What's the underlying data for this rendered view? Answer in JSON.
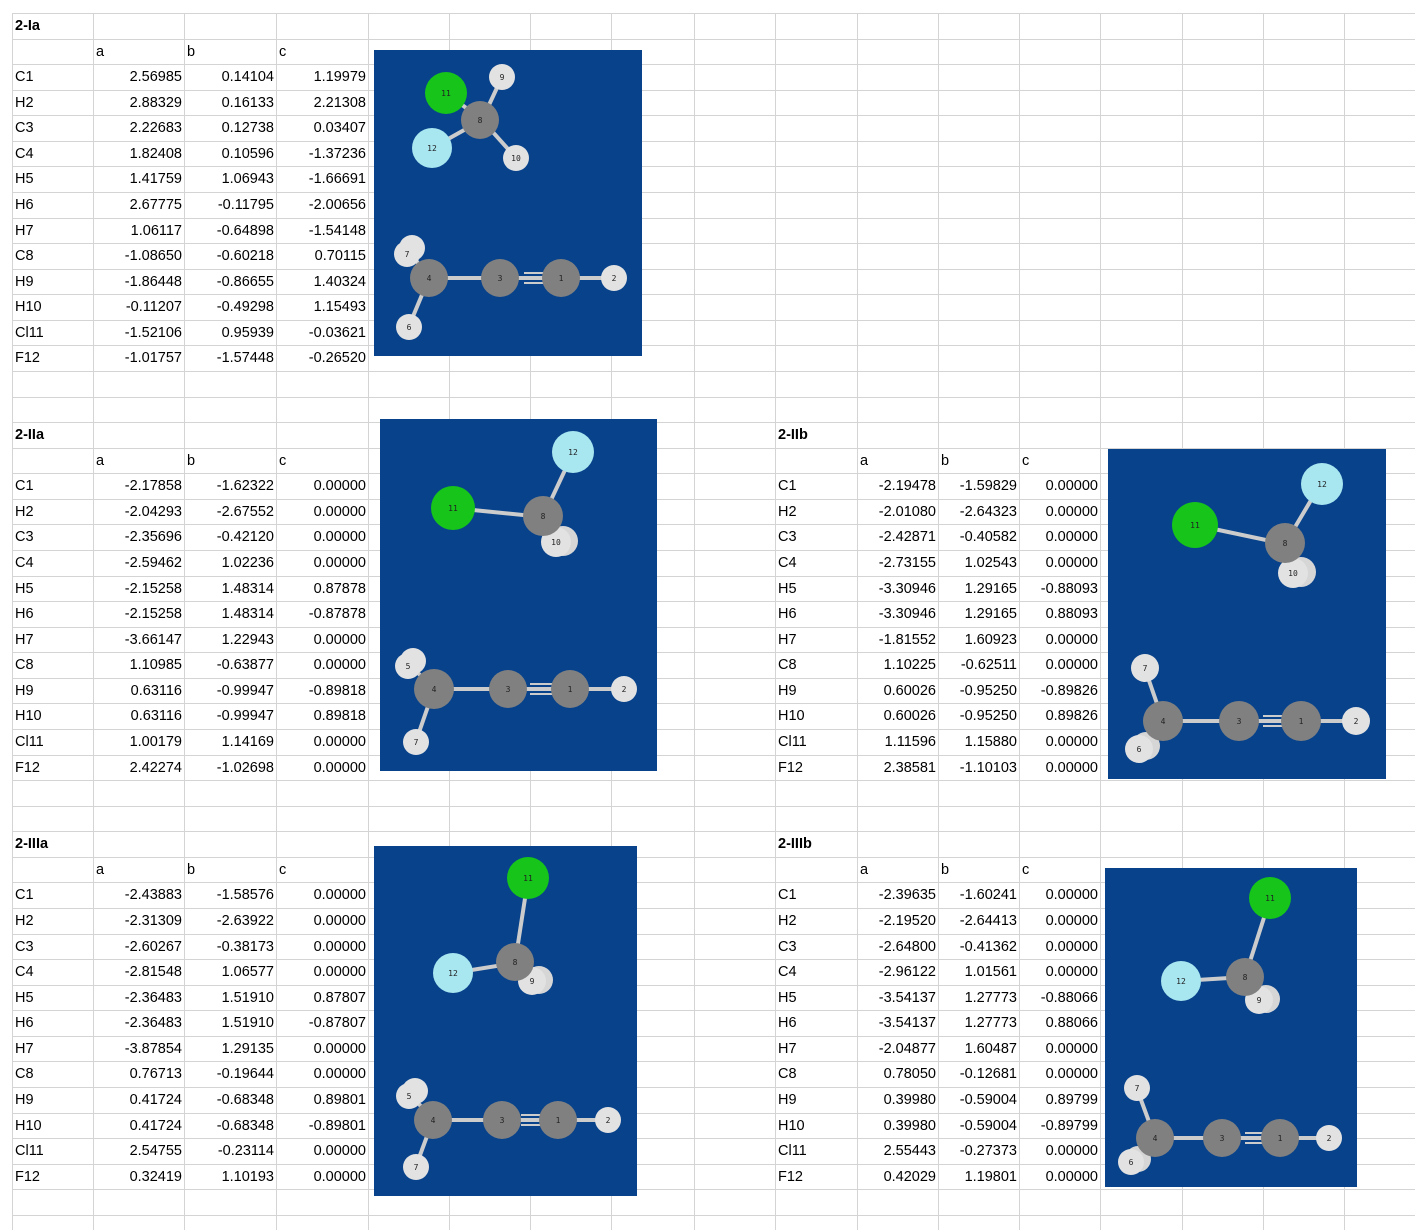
{
  "sheet": {
    "blocks": [
      {
        "title": "2-Ia",
        "headers": [
          "a",
          "b",
          "c"
        ],
        "rows": [
          [
            "C1",
            "2.56985",
            "0.14104",
            "1.19979"
          ],
          [
            "H2",
            "2.88329",
            "0.16133",
            "2.21308"
          ],
          [
            "C3",
            "2.22683",
            "0.12738",
            "0.03407"
          ],
          [
            "C4",
            "1.82408",
            "0.10596",
            "-1.37236"
          ],
          [
            "H5",
            "1.41759",
            "1.06943",
            "-1.66691"
          ],
          [
            "H6",
            "2.67775",
            "-0.11795",
            "-2.00656"
          ],
          [
            "H7",
            "1.06117",
            "-0.64898",
            "-1.54148"
          ],
          [
            "C8",
            "-1.08650",
            "-0.60218",
            "0.70115"
          ],
          [
            "H9",
            "-1.86448",
            "-0.86655",
            "1.40324"
          ],
          [
            "H10",
            "-0.11207",
            "-0.49298",
            "1.15493"
          ],
          [
            "Cl11",
            "-1.52106",
            "0.95939",
            "-0.03621"
          ],
          [
            "F12",
            "-1.01757",
            "-1.57448",
            "-0.26520"
          ]
        ]
      },
      {
        "title": "2-IIa",
        "headers": [
          "a",
          "b",
          "c"
        ],
        "rows": [
          [
            "C1",
            "-2.17858",
            "-1.62322",
            "0.00000"
          ],
          [
            "H2",
            "-2.04293",
            "-2.67552",
            "0.00000"
          ],
          [
            "C3",
            "-2.35696",
            "-0.42120",
            "0.00000"
          ],
          [
            "C4",
            "-2.59462",
            "1.02236",
            "0.00000"
          ],
          [
            "H5",
            "-2.15258",
            "1.48314",
            "0.87878"
          ],
          [
            "H6",
            "-2.15258",
            "1.48314",
            "-0.87878"
          ],
          [
            "H7",
            "-3.66147",
            "1.22943",
            "0.00000"
          ],
          [
            "C8",
            "1.10985",
            "-0.63877",
            "0.00000"
          ],
          [
            "H9",
            "0.63116",
            "-0.99947",
            "-0.89818"
          ],
          [
            "H10",
            "0.63116",
            "-0.99947",
            "0.89818"
          ],
          [
            "Cl11",
            "1.00179",
            "1.14169",
            "0.00000"
          ],
          [
            "F12",
            "2.42274",
            "-1.02698",
            "0.00000"
          ]
        ]
      },
      {
        "title": "2-IIb",
        "headers": [
          "a",
          "b",
          "c"
        ],
        "rows": [
          [
            "C1",
            "-2.19478",
            "-1.59829",
            "0.00000"
          ],
          [
            "H2",
            "-2.01080",
            "-2.64323",
            "0.00000"
          ],
          [
            "C3",
            "-2.42871",
            "-0.40582",
            "0.00000"
          ],
          [
            "C4",
            "-2.73155",
            "1.02543",
            "0.00000"
          ],
          [
            "H5",
            "-3.30946",
            "1.29165",
            "-0.88093"
          ],
          [
            "H6",
            "-3.30946",
            "1.29165",
            "0.88093"
          ],
          [
            "H7",
            "-1.81552",
            "1.60923",
            "0.00000"
          ],
          [
            "C8",
            "1.10225",
            "-0.62511",
            "0.00000"
          ],
          [
            "H9",
            "0.60026",
            "-0.95250",
            "-0.89826"
          ],
          [
            "H10",
            "0.60026",
            "-0.95250",
            "0.89826"
          ],
          [
            "Cl11",
            "1.11596",
            "1.15880",
            "0.00000"
          ],
          [
            "F12",
            "2.38581",
            "-1.10103",
            "0.00000"
          ]
        ]
      },
      {
        "title": "2-IIIa",
        "headers": [
          "a",
          "b",
          "c"
        ],
        "rows": [
          [
            "C1",
            "-2.43883",
            "-1.58576",
            "0.00000"
          ],
          [
            "H2",
            "-2.31309",
            "-2.63922",
            "0.00000"
          ],
          [
            "C3",
            "-2.60267",
            "-0.38173",
            "0.00000"
          ],
          [
            "C4",
            "-2.81548",
            "1.06577",
            "0.00000"
          ],
          [
            "H5",
            "-2.36483",
            "1.51910",
            "0.87807"
          ],
          [
            "H6",
            "-2.36483",
            "1.51910",
            "-0.87807"
          ],
          [
            "H7",
            "-3.87854",
            "1.29135",
            "0.00000"
          ],
          [
            "C8",
            "0.76713",
            "-0.19644",
            "0.00000"
          ],
          [
            "H9",
            "0.41724",
            "-0.68348",
            "0.89801"
          ],
          [
            "H10",
            "0.41724",
            "-0.68348",
            "-0.89801"
          ],
          [
            "Cl11",
            "2.54755",
            "-0.23114",
            "0.00000"
          ],
          [
            "F12",
            "0.32419",
            "1.10193",
            "0.00000"
          ]
        ]
      },
      {
        "title": "2-IIIb",
        "headers": [
          "a",
          "b",
          "c"
        ],
        "rows": [
          [
            "C1",
            "-2.39635",
            "-1.60241",
            "0.00000"
          ],
          [
            "H2",
            "-2.19520",
            "-2.64413",
            "0.00000"
          ],
          [
            "C3",
            "-2.64800",
            "-0.41362",
            "0.00000"
          ],
          [
            "C4",
            "-2.96122",
            "1.01561",
            "0.00000"
          ],
          [
            "H5",
            "-3.54137",
            "1.27773",
            "-0.88066"
          ],
          [
            "H6",
            "-3.54137",
            "1.27773",
            "0.88066"
          ],
          [
            "H7",
            "-2.04877",
            "1.60487",
            "0.00000"
          ],
          [
            "C8",
            "0.78050",
            "-0.12681",
            "0.00000"
          ],
          [
            "H9",
            "0.39980",
            "-0.59004",
            "0.89799"
          ],
          [
            "H10",
            "0.39980",
            "-0.59004",
            "-0.89799"
          ],
          [
            "Cl11",
            "2.55443",
            "-0.27373",
            "0.00000"
          ],
          [
            "F12",
            "0.42029",
            "1.19801",
            "0.00000"
          ]
        ]
      }
    ],
    "molecule_images": [
      {
        "structure": "2-Ia",
        "atom_labels": [
          "1",
          "2",
          "3",
          "4",
          "6",
          "7",
          "8",
          "9",
          "10",
          "11",
          "12"
        ]
      },
      {
        "structure": "2-IIa",
        "atom_labels": [
          "1",
          "2",
          "3",
          "4",
          "5",
          "7",
          "8",
          "10",
          "11",
          "12"
        ]
      },
      {
        "structure": "2-IIb",
        "atom_labels": [
          "1",
          "2",
          "3",
          "4",
          "6",
          "7",
          "8",
          "10",
          "11",
          "12"
        ]
      },
      {
        "structure": "2-IIIa",
        "atom_labels": [
          "1",
          "2",
          "3",
          "4",
          "5",
          "7",
          "8",
          "9",
          "11",
          "12"
        ]
      },
      {
        "structure": "2-IIIb",
        "atom_labels": [
          "1",
          "2",
          "3",
          "4",
          "6",
          "7",
          "8",
          "9",
          "11",
          "12"
        ]
      }
    ],
    "colors": {
      "image_background": "#07428b",
      "gridline": "#d4d4d4",
      "carbon": "#8a8a8a",
      "hydrogen": "#e6e6e6",
      "chlorine": "#16c41a",
      "fluorine": "#a8e6f0"
    }
  }
}
